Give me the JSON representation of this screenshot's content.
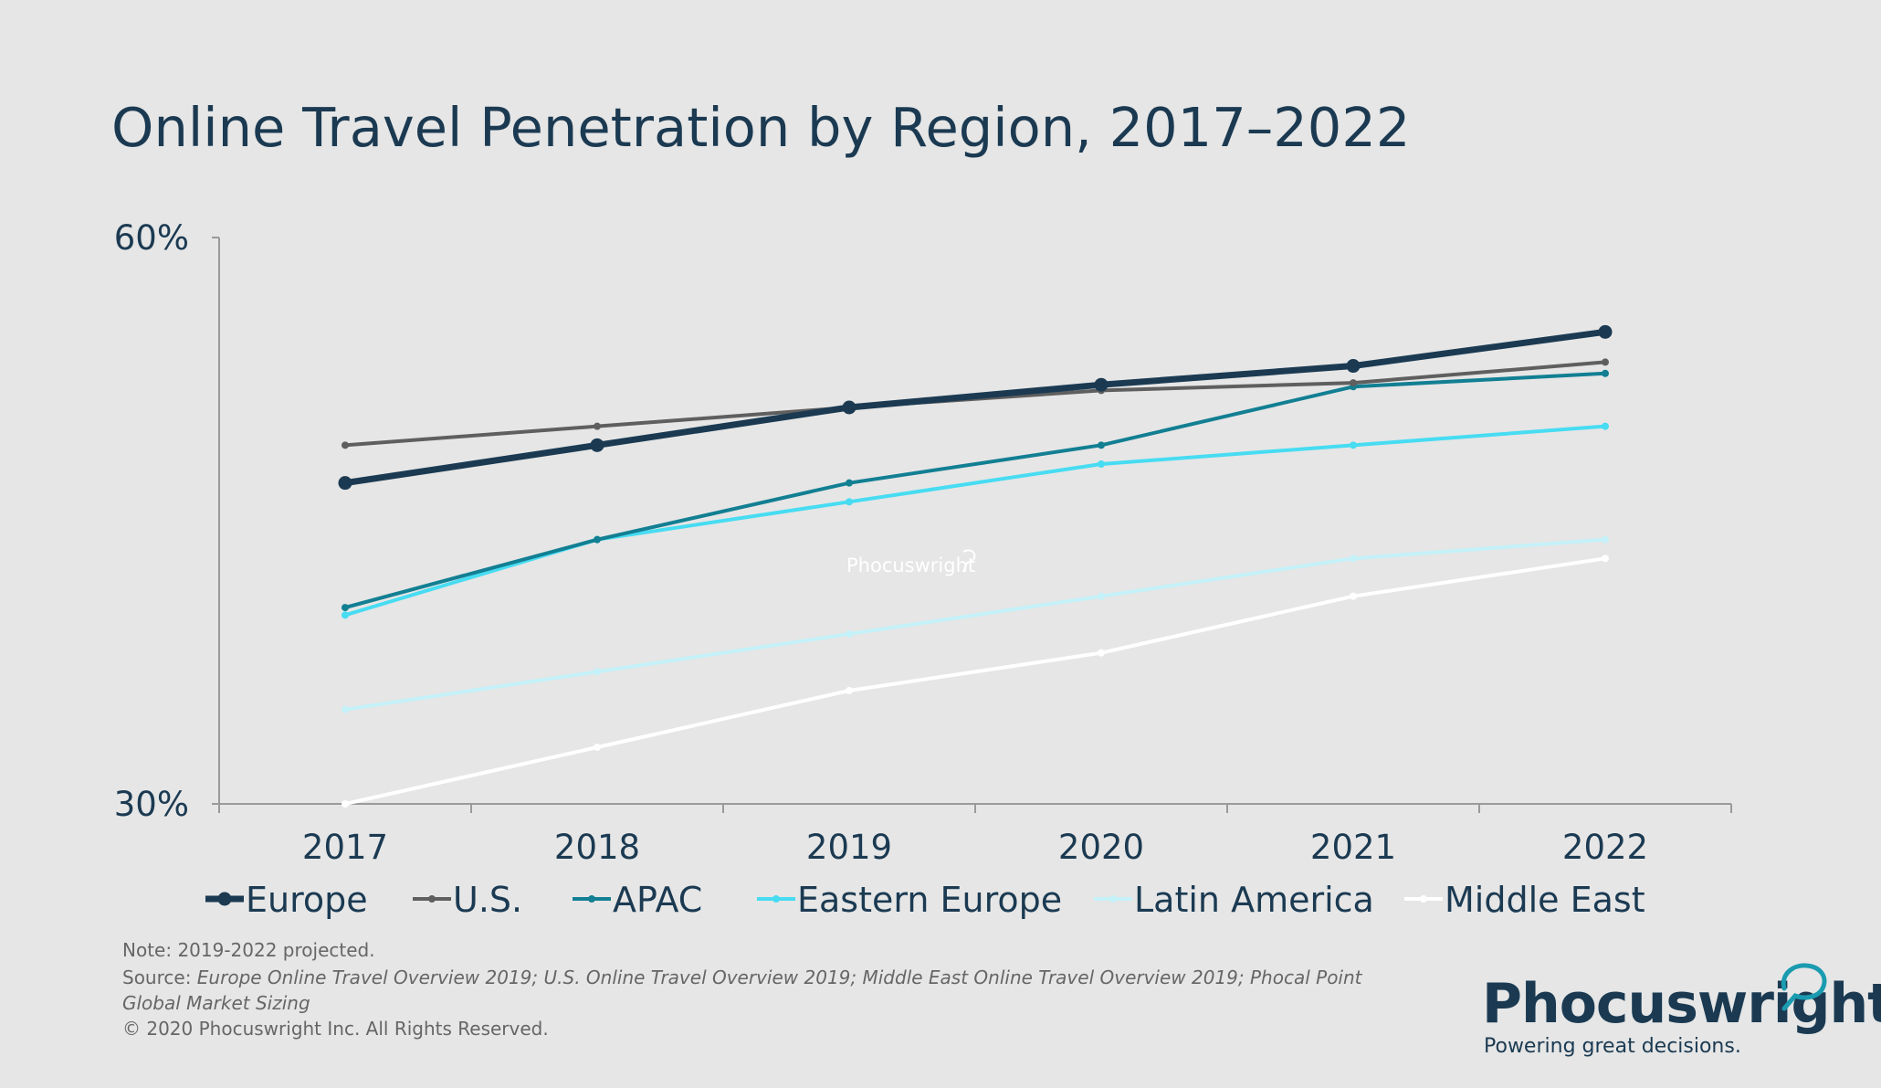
{
  "chart_data": {
    "type": "line",
    "title": "Online Travel Penetration by Region, 2017–2022",
    "x": [
      "2017",
      "2018",
      "2019",
      "2020",
      "2021",
      "2022"
    ],
    "y_ticks": [
      "60%",
      "30%"
    ],
    "ylim": [
      30,
      60
    ],
    "grid": false,
    "legend_position": "bottom",
    "series": [
      {
        "name": "Europe",
        "color": "#1b3a52",
        "values": [
          47,
          49,
          51,
          52.2,
          53.2,
          55
        ]
      },
      {
        "name": "U.S.",
        "color": "#5f5f5f",
        "values": [
          49,
          50,
          51,
          51.9,
          52.3,
          53.4
        ]
      },
      {
        "name": "APAC",
        "color": "#127f93",
        "values": [
          40.4,
          44,
          47,
          49,
          52.1,
          52.8
        ]
      },
      {
        "name": "Eastern Europe",
        "color": "#47dcf2",
        "values": [
          40,
          44,
          46,
          48,
          49,
          50
        ]
      },
      {
        "name": "Latin America",
        "color": "#c5f1f8",
        "values": [
          35,
          37,
          39,
          41,
          43,
          44
        ]
      },
      {
        "name": "Middle East",
        "color": "#ffffff",
        "values": [
          30,
          33,
          36,
          38,
          41,
          43
        ]
      }
    ]
  },
  "watermark": "Phocuswright",
  "notes": {
    "note": "Note: 2019-2022 projected.",
    "source_label": "Source:",
    "source_text": "Europe Online Travel Overview 2019; U.S. Online Travel Overview 2019; Middle East Online Travel Overview 2019; Phocal Point Global Market Sizing",
    "copyright": "© 2020  Phocuswright Inc. All Rights Reserved."
  },
  "brand": {
    "name": "Phocuswright",
    "tagline": "Powering great decisions.",
    "mark_color": "#1a9bb0"
  }
}
